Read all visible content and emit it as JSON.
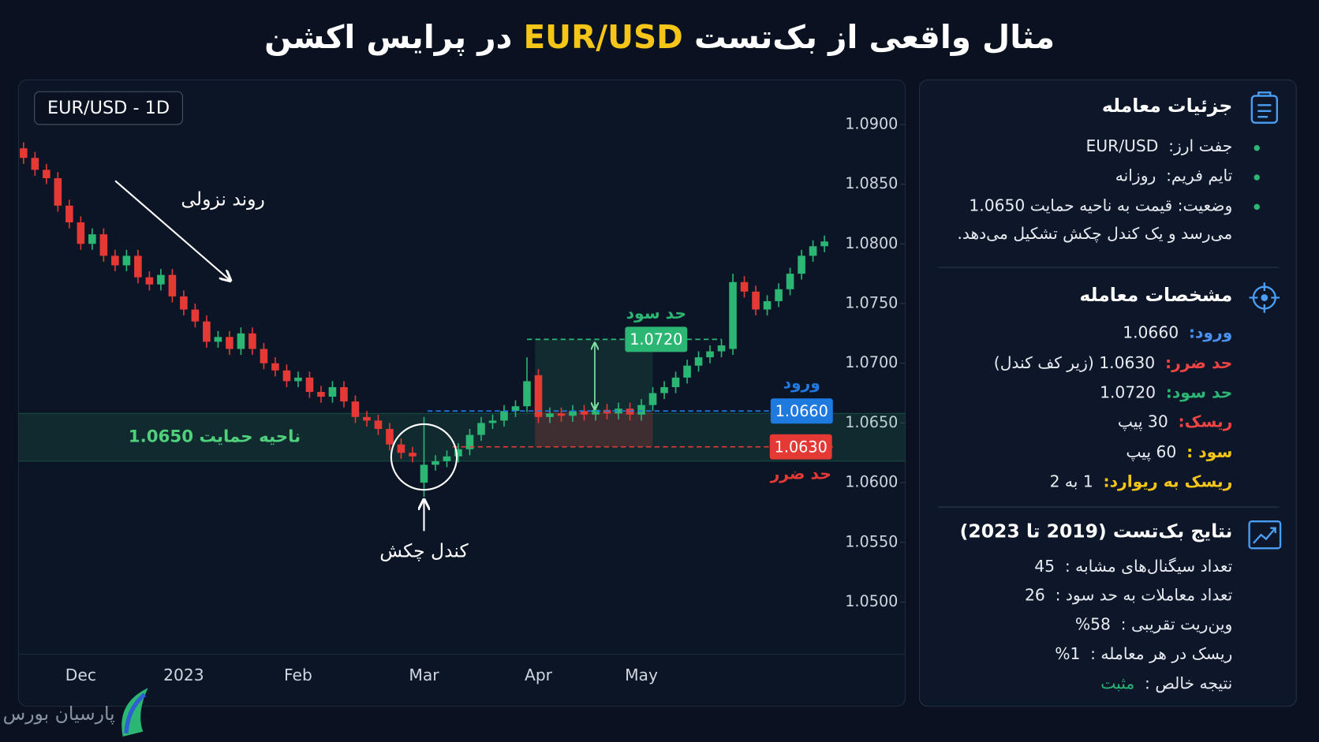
{
  "chart_data": {
    "type": "candlestick",
    "title": [
      "مثال واقعی از بک‌تست",
      "EUR/USD",
      "در پرایس اکشن"
    ],
    "symbol_label": "EUR/USD - 1D",
    "trend_label": "روند نزولی",
    "hammer_label": "کندل چکش",
    "categories": [
      null,
      null,
      null,
      null,
      null,
      "Dec",
      null,
      null,
      null,
      null,
      null,
      null,
      null,
      null,
      "2023",
      null,
      null,
      null,
      null,
      null,
      null,
      null,
      null,
      null,
      "Feb",
      null,
      null,
      null,
      null,
      null,
      null,
      null,
      null,
      null,
      null,
      "Mar",
      null,
      null,
      null,
      null,
      null,
      null,
      null,
      null,
      null,
      "Apr",
      null,
      null,
      null,
      null,
      null,
      null,
      null,
      null,
      "May",
      null,
      null,
      null,
      null,
      null,
      null,
      null,
      null,
      null,
      null,
      null,
      null,
      null,
      null,
      null,
      null
    ],
    "open": [
      1.088,
      1.0872,
      1.0862,
      1.0855,
      1.0832,
      1.0818,
      1.08,
      1.0808,
      1.079,
      1.0782,
      1.079,
      1.0772,
      1.0766,
      1.0774,
      1.0756,
      1.0745,
      1.0735,
      1.0718,
      1.0722,
      1.0712,
      1.0725,
      1.0712,
      1.07,
      1.0694,
      1.0685,
      1.0688,
      1.0676,
      1.0672,
      1.068,
      1.0668,
      1.0655,
      1.0652,
      1.0645,
      1.0632,
      1.0625,
      1.06,
      1.0615,
      1.0618,
      1.0622,
      1.0628,
      1.064,
      1.065,
      1.0652,
      1.066,
      1.0664,
      1.069,
      1.0655,
      1.0658,
      1.0656,
      1.066,
      1.0657,
      1.0661,
      1.0658,
      1.0662,
      1.0657,
      1.0665,
      1.0675,
      1.068,
      1.0688,
      1.0698,
      1.0705,
      1.071,
      1.0712,
      1.0768,
      1.076,
      1.0745,
      1.0752,
      1.0762,
      1.0775,
      1.079,
      1.0798
    ],
    "high": [
      1.0885,
      1.0877,
      1.0867,
      1.086,
      1.0837,
      1.0823,
      1.0813,
      1.0813,
      1.0795,
      1.0795,
      1.0795,
      1.0777,
      1.0779,
      1.0779,
      1.0761,
      1.075,
      1.074,
      1.0727,
      1.0727,
      1.073,
      1.073,
      1.0717,
      1.0705,
      1.0699,
      1.0693,
      1.0693,
      1.0681,
      1.0685,
      1.0685,
      1.0673,
      1.066,
      1.0657,
      1.065,
      1.0637,
      1.063,
      1.0655,
      1.0623,
      1.0627,
      1.0633,
      1.0645,
      1.0655,
      1.0657,
      1.0665,
      1.0669,
      1.0705,
      1.0695,
      1.0663,
      1.0663,
      1.0665,
      1.0665,
      1.0666,
      1.0666,
      1.0667,
      1.0667,
      1.067,
      1.068,
      1.0685,
      1.0693,
      1.0703,
      1.071,
      1.0715,
      1.072,
      1.0775,
      1.0773,
      1.0765,
      1.0757,
      1.0767,
      1.078,
      1.0795,
      1.0803,
      1.0807
    ],
    "low": [
      1.0867,
      1.0857,
      1.085,
      1.0827,
      1.0813,
      1.0795,
      1.0795,
      1.0785,
      1.0777,
      1.0777,
      1.0767,
      1.0761,
      1.0761,
      1.0751,
      1.074,
      1.073,
      1.0713,
      1.0713,
      1.0707,
      1.0707,
      1.0707,
      1.0695,
      1.0689,
      1.068,
      1.068,
      1.0671,
      1.0667,
      1.0667,
      1.0663,
      1.065,
      1.0647,
      1.064,
      1.0627,
      1.062,
      1.0617,
      1.0588,
      1.061,
      1.0613,
      1.0617,
      1.0623,
      1.0635,
      1.0645,
      1.0647,
      1.0655,
      1.0659,
      1.065,
      1.065,
      1.0651,
      1.0651,
      1.0652,
      1.0652,
      1.0653,
      1.0653,
      1.0652,
      1.0652,
      1.066,
      1.067,
      1.0675,
      1.0683,
      1.0693,
      1.07,
      1.0705,
      1.0707,
      1.0755,
      1.074,
      1.074,
      1.0747,
      1.0757,
      1.077,
      1.0785,
      1.0793
    ],
    "close": [
      1.0872,
      1.0862,
      1.0855,
      1.0832,
      1.0818,
      1.08,
      1.0808,
      1.079,
      1.0782,
      1.079,
      1.0772,
      1.0766,
      1.0774,
      1.0756,
      1.0745,
      1.0735,
      1.0718,
      1.0722,
      1.0712,
      1.0725,
      1.0712,
      1.07,
      1.0694,
      1.0685,
      1.0688,
      1.0676,
      1.0672,
      1.068,
      1.0668,
      1.0655,
      1.0652,
      1.0645,
      1.0632,
      1.0625,
      1.0622,
      1.0615,
      1.0618,
      1.0622,
      1.0628,
      1.064,
      1.065,
      1.0652,
      1.066,
      1.0664,
      1.0685,
      1.0655,
      1.0658,
      1.0656,
      1.066,
      1.0657,
      1.0661,
      1.0658,
      1.0662,
      1.0657,
      1.0665,
      1.0675,
      1.068,
      1.0688,
      1.0698,
      1.0705,
      1.071,
      1.0715,
      1.0768,
      1.076,
      1.0745,
      1.0752,
      1.0762,
      1.0775,
      1.079,
      1.0798,
      1.0802
    ],
    "up_color": "#2bb673",
    "down_color": "#e53935",
    "ylim": [
      1.046,
      1.093
    ],
    "yticks": [
      {
        "value": 1.09,
        "label": "1.0900"
      },
      {
        "value": 1.085,
        "label": "1.0850"
      },
      {
        "value": 1.08,
        "label": "1.0800"
      },
      {
        "value": 1.075,
        "label": "1.0750"
      },
      {
        "value": 1.07,
        "label": "1.0700"
      },
      {
        "value": 1.065,
        "label": "1.0650"
      },
      {
        "value": 1.06,
        "label": "1.0600"
      },
      {
        "value": 1.055,
        "label": "1.0550"
      },
      {
        "value": 1.05,
        "label": "1.0500"
      }
    ],
    "grid": false,
    "support": {
      "label": "ناحیه حمایت 1.0650",
      "low": 1.0618,
      "high": 1.0658,
      "color": "#2bb673"
    },
    "levels": [
      {
        "name": "ورود",
        "value": 1.066,
        "value_label": "1.0660",
        "color": "#1f7ae0"
      },
      {
        "name": "حد ضرر",
        "value": 1.063,
        "value_label": "1.0630",
        "color": "#e53935"
      },
      {
        "name": "حد سود",
        "value": 1.072,
        "value_label": "1.0720",
        "color": "#2bb673"
      }
    ]
  },
  "panel": {
    "sections": [
      {
        "title": "جزئیات معامله",
        "items": [
          {
            "label": "جفت ارز:",
            "value": "EUR/USD"
          },
          {
            "label": "تایم فریم:",
            "value": "روزانه"
          },
          {
            "text": "وضعیت: قیمت به ناحیه حمایت 1.0650 می‌رسد و یک کندل چکش تشکیل می‌دهد."
          }
        ]
      },
      {
        "title": "مشخصات معامله",
        "items": [
          {
            "label": "ورود:",
            "value": "1.0660",
            "color": "#4a90f0"
          },
          {
            "label": "حد ضرر:",
            "value": "1.0630 (زیر کف کندل)",
            "color": "#ef4444"
          },
          {
            "label": "حد سود:",
            "value": "1.0720",
            "color": "#2bb673"
          },
          {
            "label": "ریسک:",
            "value": "30 پیپ",
            "color": "#ef4444"
          },
          {
            "label": "سود :",
            "value": "60 پیپ",
            "color": "#f5c518"
          },
          {
            "label": "ریسک به ریوارد:",
            "value": "1 به 2",
            "color": "#f5c518"
          }
        ]
      },
      {
        "title": "نتایج بک‌تست (2019 تا 2023)",
        "items": [
          {
            "label": "تعداد سیگنال‌های مشابه :",
            "value": "45"
          },
          {
            "label": "تعداد معاملات به حد سود :",
            "value": "26"
          },
          {
            "label": "وین‌ریت تقریبی :",
            "value": "58%"
          },
          {
            "label": "ریسک در هر معامله :",
            "value": "1%"
          },
          {
            "label": "نتیجه خالص :",
            "value": "مثبت",
            "value_color": "#2bb673"
          }
        ]
      }
    ]
  },
  "brand": "پارسیان بورس"
}
